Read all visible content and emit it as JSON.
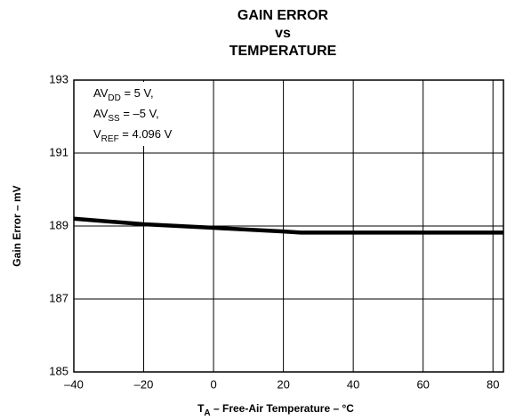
{
  "chart_data": {
    "type": "line",
    "title": [
      "GAIN ERROR",
      "vs",
      "TEMPERATURE"
    ],
    "annotation": [
      {
        "main": "AV",
        "sub": "DD",
        "rest": " = 5 V,"
      },
      {
        "main": "AV",
        "sub": "SS",
        "rest": " = –5 V,"
      },
      {
        "main": "V",
        "sub": "REF",
        "rest": " = 4.096 V"
      }
    ],
    "x_label": {
      "main": "T",
      "sub": "A",
      "rest": " – Free-Air Temperature – °C"
    },
    "y_label": "Gain Error – mV",
    "x": [
      -40,
      -20,
      0,
      20,
      25,
      40,
      60,
      80,
      83
    ],
    "series": [
      {
        "name": "Gain Error",
        "color": "#000000",
        "values": [
          189.2,
          189.05,
          188.95,
          188.85,
          188.82,
          188.82,
          188.82,
          188.82,
          188.82
        ]
      }
    ],
    "xlim": [
      -40,
      83
    ],
    "xticks": [
      {
        "value": -40,
        "label": "–40"
      },
      {
        "value": -20,
        "label": "–20"
      },
      0,
      20,
      40,
      60,
      80
    ],
    "ylim": [
      185,
      193
    ],
    "yticks": [
      185,
      187,
      189,
      191,
      193
    ],
    "grid": true
  }
}
